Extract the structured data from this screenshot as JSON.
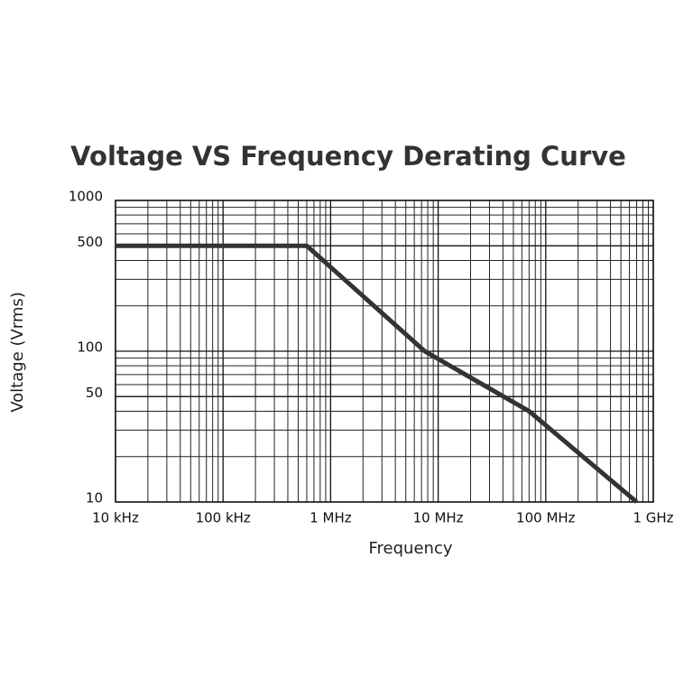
{
  "chart_data": {
    "type": "line",
    "title": "Voltage VS Frequency Derating Curve",
    "x_label": "Frequency",
    "y_label": "Voltage (Vrms)",
    "x": [
      10000,
      600000,
      7500000,
      70000000,
      700000000
    ],
    "series": [
      {
        "color": "#333333",
        "values": [
          500,
          500,
          100,
          40,
          10
        ]
      }
    ],
    "x_log": true,
    "y_log": true,
    "grid": true,
    "xlim": [
      10000,
      1000000000
    ],
    "xticks": [
      {
        "value": 10000,
        "label": "10 kHz"
      },
      {
        "value": 100000,
        "label": "100 kHz"
      },
      {
        "value": 1000000,
        "label": "1 MHz"
      },
      {
        "value": 10000000,
        "label": "10 MHz"
      },
      {
        "value": 100000000,
        "label": "100 MHz"
      },
      {
        "value": 1000000000,
        "label": "1 GHz"
      }
    ],
    "ylim": [
      10,
      1000
    ],
    "yticks": [
      10,
      50,
      100,
      500,
      1000
    ]
  }
}
